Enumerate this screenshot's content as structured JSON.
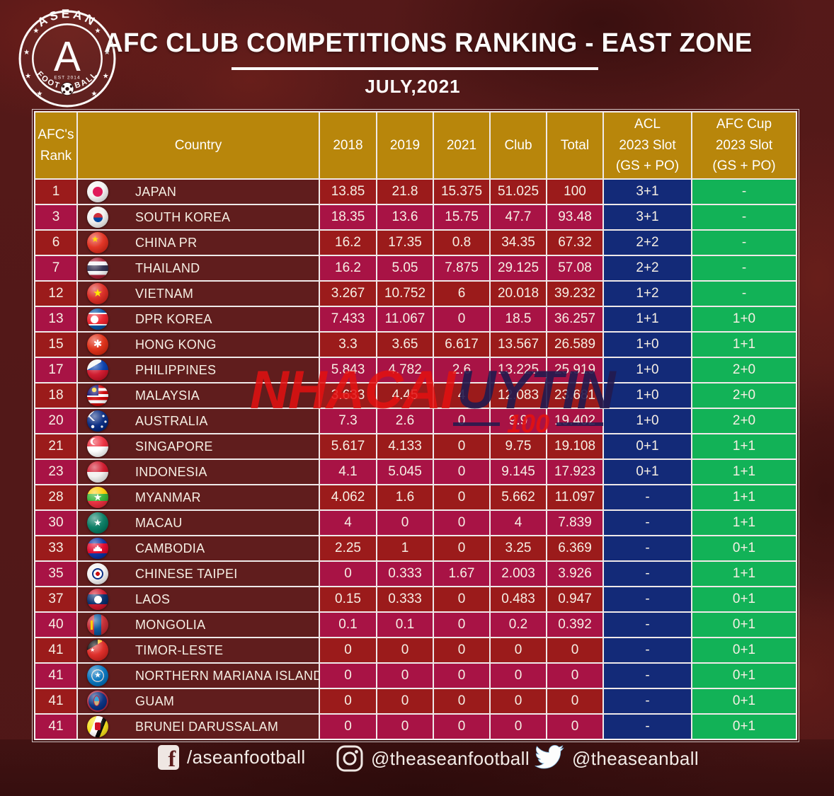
{
  "header": {
    "logo": {
      "top_text": "ASEAN",
      "center_letter": "A",
      "est_text": "EST 2014",
      "bottom_text": "FOOT ★ BALL"
    }
  },
  "chart_data": {
    "type": "table",
    "title": "AFC CLUB COMPETITIONS RANKING - EAST ZONE",
    "subtitle": "JULY,2021",
    "columns": [
      {
        "id": "rank",
        "label": "AFC's\nRank"
      },
      {
        "id": "country",
        "label": "Country"
      },
      {
        "id": "y2018",
        "label": "2018"
      },
      {
        "id": "y2019",
        "label": "2019"
      },
      {
        "id": "y2021",
        "label": "2021"
      },
      {
        "id": "club",
        "label": "Club"
      },
      {
        "id": "total",
        "label": "Total"
      },
      {
        "id": "acl",
        "label": "ACL\n2023 Slot\n(GS + PO)"
      },
      {
        "id": "cup",
        "label": "AFC Cup\n2023 Slot\n(GS + PO)"
      }
    ],
    "rows": [
      {
        "rank": "1",
        "country": "JAPAN",
        "flag": "jp",
        "y2018": "13.85",
        "y2019": "21.8",
        "y2021": "15.375",
        "club": "51.025",
        "total": "100",
        "acl": "3+1",
        "cup": "-"
      },
      {
        "rank": "3",
        "country": "SOUTH KOREA",
        "flag": "kr",
        "y2018": "18.35",
        "y2019": "13.6",
        "y2021": "15.75",
        "club": "47.7",
        "total": "93.48",
        "acl": "3+1",
        "cup": "-"
      },
      {
        "rank": "6",
        "country": "CHINA PR",
        "flag": "cn",
        "y2018": "16.2",
        "y2019": "17.35",
        "y2021": "0.8",
        "club": "34.35",
        "total": "67.32",
        "acl": "2+2",
        "cup": "-"
      },
      {
        "rank": "7",
        "country": "THAILAND",
        "flag": "th",
        "y2018": "16.2",
        "y2019": "5.05",
        "y2021": "7.875",
        "club": "29.125",
        "total": "57.08",
        "acl": "2+2",
        "cup": "-"
      },
      {
        "rank": "12",
        "country": "VIETNAM",
        "flag": "vn",
        "y2018": "3.267",
        "y2019": "10.752",
        "y2021": "6",
        "club": "20.018",
        "total": "39.232",
        "acl": "1+2",
        "cup": "-"
      },
      {
        "rank": "13",
        "country": "DPR KOREA",
        "flag": "kp",
        "y2018": "7.433",
        "y2019": "11.067",
        "y2021": "0",
        "club": "18.5",
        "total": "36.257",
        "acl": "1+1",
        "cup": "1+0"
      },
      {
        "rank": "15",
        "country": "HONG KONG",
        "flag": "hk",
        "y2018": "3.3",
        "y2019": "3.65",
        "y2021": "6.617",
        "club": "13.567",
        "total": "26.589",
        "acl": "1+0",
        "cup": "1+1"
      },
      {
        "rank": "17",
        "country": "PHILIPPINES",
        "flag": "ph",
        "y2018": "5.843",
        "y2019": "4.782",
        "y2021": "2.6",
        "club": "13.225",
        "total": "25.919",
        "acl": "1+0",
        "cup": "2+0"
      },
      {
        "rank": "18",
        "country": "MALAYSIA",
        "flag": "my",
        "y2018": "3.633",
        "y2019": "4.45",
        "y2021": "4",
        "club": "12.083",
        "total": "23.681",
        "acl": "1+0",
        "cup": "2+0"
      },
      {
        "rank": "20",
        "country": "AUSTRALIA",
        "flag": "au",
        "y2018": "7.3",
        "y2019": "2.6",
        "y2021": "0",
        "club": "9.9",
        "total": "19.402",
        "acl": "1+0",
        "cup": "2+0"
      },
      {
        "rank": "21",
        "country": "SINGAPORE",
        "flag": "sg",
        "y2018": "5.617",
        "y2019": "4.133",
        "y2021": "0",
        "club": "9.75",
        "total": "19.108",
        "acl": "0+1",
        "cup": "1+1"
      },
      {
        "rank": "23",
        "country": "INDONESIA",
        "flag": "id",
        "y2018": "4.1",
        "y2019": "5.045",
        "y2021": "0",
        "club": "9.145",
        "total": "17.923",
        "acl": "0+1",
        "cup": "1+1"
      },
      {
        "rank": "28",
        "country": "MYANMAR",
        "flag": "mm",
        "y2018": "4.062",
        "y2019": "1.6",
        "y2021": "0",
        "club": "5.662",
        "total": "11.097",
        "acl": "-",
        "cup": "1+1"
      },
      {
        "rank": "30",
        "country": "MACAU",
        "flag": "mo",
        "y2018": "4",
        "y2019": "0",
        "y2021": "0",
        "club": "4",
        "total": "7.839",
        "acl": "-",
        "cup": "1+1"
      },
      {
        "rank": "33",
        "country": "CAMBODIA",
        "flag": "kh",
        "y2018": "2.25",
        "y2019": "1",
        "y2021": "0",
        "club": "3.25",
        "total": "6.369",
        "acl": "-",
        "cup": "0+1"
      },
      {
        "rank": "35",
        "country": "CHINESE TAIPEI",
        "flag": "tw",
        "y2018": "0",
        "y2019": "0.333",
        "y2021": "1.67",
        "club": "2.003",
        "total": "3.926",
        "acl": "-",
        "cup": "1+1"
      },
      {
        "rank": "37",
        "country": "LAOS",
        "flag": "la",
        "y2018": "0.15",
        "y2019": "0.333",
        "y2021": "0",
        "club": "0.483",
        "total": "0.947",
        "acl": "-",
        "cup": "0+1"
      },
      {
        "rank": "40",
        "country": "MONGOLIA",
        "flag": "mn",
        "y2018": "0.1",
        "y2019": "0.1",
        "y2021": "0",
        "club": "0.2",
        "total": "0.392",
        "acl": "-",
        "cup": "0+1"
      },
      {
        "rank": "41",
        "country": "TIMOR-LESTE",
        "flag": "tl",
        "y2018": "0",
        "y2019": "0",
        "y2021": "0",
        "club": "0",
        "total": "0",
        "acl": "-",
        "cup": "0+1"
      },
      {
        "rank": "41",
        "country": "NORTHERN MARIANA ISLANDS",
        "flag": "mp",
        "y2018": "0",
        "y2019": "0",
        "y2021": "0",
        "club": "0",
        "total": "0",
        "acl": "-",
        "cup": "0+1"
      },
      {
        "rank": "41",
        "country": "GUAM",
        "flag": "gu",
        "y2018": "0",
        "y2019": "0",
        "y2021": "0",
        "club": "0",
        "total": "0",
        "acl": "-",
        "cup": "0+1"
      },
      {
        "rank": "41",
        "country": "BRUNEI DARUSSALAM",
        "flag": "bn",
        "y2018": "0",
        "y2019": "0",
        "y2021": "0",
        "club": "0",
        "total": "0",
        "acl": "-",
        "cup": "0+1"
      }
    ],
    "layout": {
      "grid": false,
      "header_position": "top"
    }
  },
  "watermark": {
    "text_primary": "NHACAI",
    "text_secondary": "UYTIN",
    "text_number": "100"
  },
  "footer": {
    "facebook_handle": "/aseanfootball",
    "instagram_handle": "@theaseanfootball",
    "twitter_handle": "@theaseanball"
  },
  "colors": {
    "background": "#5A1B1B",
    "header_gold": "#B8860B",
    "row_dark_red": "#9B1B1B",
    "row_crimson": "#A81345",
    "country_cell": "#601D1D",
    "acl_navy": "#132A78",
    "cup_green": "#12B257",
    "border_white": "#FFFFFF",
    "watermark_red": "#E31111",
    "watermark_navy": "#231A4E"
  }
}
